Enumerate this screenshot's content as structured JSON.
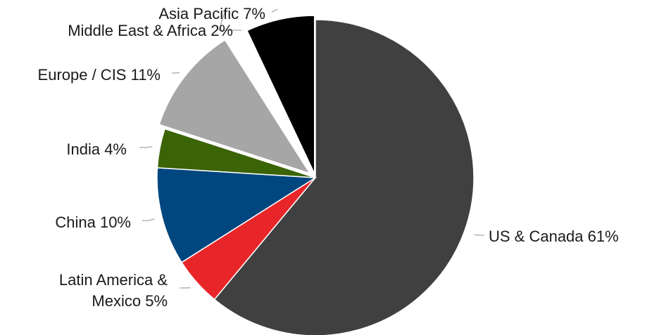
{
  "chart_data": {
    "type": "pie",
    "slices": [
      {
        "label_lines": [
          "US & Canada 61%"
        ],
        "value": 61,
        "color": "#404040"
      },
      {
        "label_lines": [
          "Latin America &",
          "Mexico 5%"
        ],
        "value": 5,
        "color": "#e8262a"
      },
      {
        "label_lines": [
          "China 10%"
        ],
        "value": 10,
        "color": "#00467f"
      },
      {
        "label_lines": [
          "India 4%"
        ],
        "value": 4,
        "color": "#3b6407"
      },
      {
        "label_lines": [
          "Europe / CIS 11%"
        ],
        "value": 11,
        "color": "#a6a6a6"
      },
      {
        "label_lines": [
          "Middle East & Africa 2%"
        ],
        "value": 2,
        "color": "#ffffff"
      },
      {
        "label_lines": [
          "Asia Pacific 7%"
        ],
        "value": 7,
        "color": "#000000"
      }
    ],
    "start_position": "top",
    "direction": "clockwise",
    "exploded_slices": [
      "Europe / CIS 11%",
      "Middle East & Africa 2%",
      "Asia Pacific 7%"
    ],
    "legend": "none",
    "labels": "outside with leader lines"
  }
}
